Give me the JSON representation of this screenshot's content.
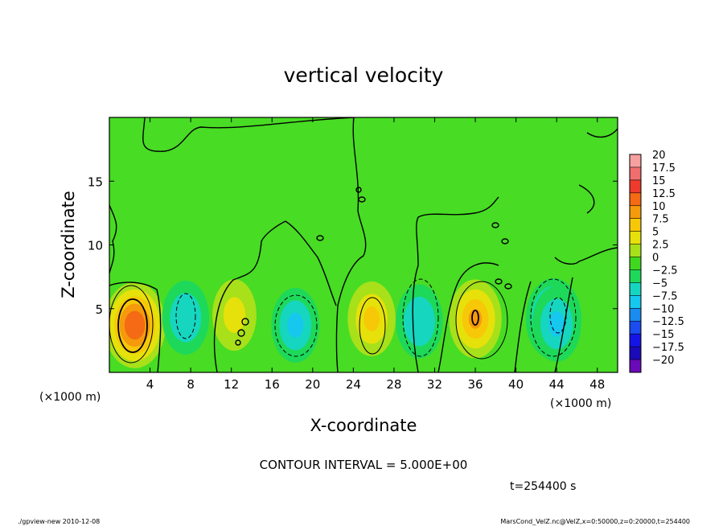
{
  "chart_data": {
    "type": "heatmap",
    "title": "vertical velocity",
    "xlabel": "X-coordinate",
    "ylabel": "Z-coordinate",
    "x_unit_left": "(×1000 m)",
    "x_unit_right": "(×1000 m)",
    "xlim": [
      0,
      50
    ],
    "ylim": [
      0,
      20
    ],
    "x_ticks": [
      4,
      8,
      12,
      16,
      20,
      24,
      28,
      32,
      36,
      40,
      44,
      48
    ],
    "y_ticks": [
      5,
      10,
      15
    ],
    "contour_interval": "CONTOUR INTERVAL = 5.000E+00",
    "time": "t=254400 s",
    "colorbar": {
      "levels": [
        "20",
        "17.5",
        "15",
        "12.5",
        "10",
        "7.5",
        "5",
        "2.5",
        "0",
        "−2.5",
        "−5",
        "−7.5",
        "−10",
        "−12.5",
        "−15",
        "−17.5",
        "−20"
      ],
      "colors": [
        "#f6a0a0",
        "#f06e6e",
        "#ee3b2c",
        "#f56a14",
        "#f59a0c",
        "#f7c808",
        "#e6e10a",
        "#a8e01a",
        "#3fd81e",
        "#1ed85a",
        "#16d6c0",
        "#16c8ee",
        "#1a8cf0",
        "#1a4cf0",
        "#1414e6",
        "#1a0ab8",
        "#6a0ab8"
      ]
    },
    "features": [
      {
        "x": 2.5,
        "z": 3.7,
        "w": 13.5
      },
      {
        "x": 7.5,
        "z": 4.3,
        "w": -6
      },
      {
        "x": 12.3,
        "z": 4.5,
        "w": 4.5
      },
      {
        "x": 18.3,
        "z": 3.7,
        "w": -6.5
      },
      {
        "x": 25.8,
        "z": 4.2,
        "w": 6.5
      },
      {
        "x": 30.5,
        "z": 4.0,
        "w": -6
      },
      {
        "x": 36.0,
        "z": 4.2,
        "w": 9
      },
      {
        "x": 43.7,
        "z": 4.2,
        "w": -10.5
      },
      {
        "x": 44.0,
        "z": 3.8,
        "w": -7
      }
    ]
  },
  "footer": {
    "left": "./gpview-new  2010-12-08",
    "right": "MarsCond_VelZ.nc@VelZ,x=0:50000,z=0:20000,t=254400"
  }
}
